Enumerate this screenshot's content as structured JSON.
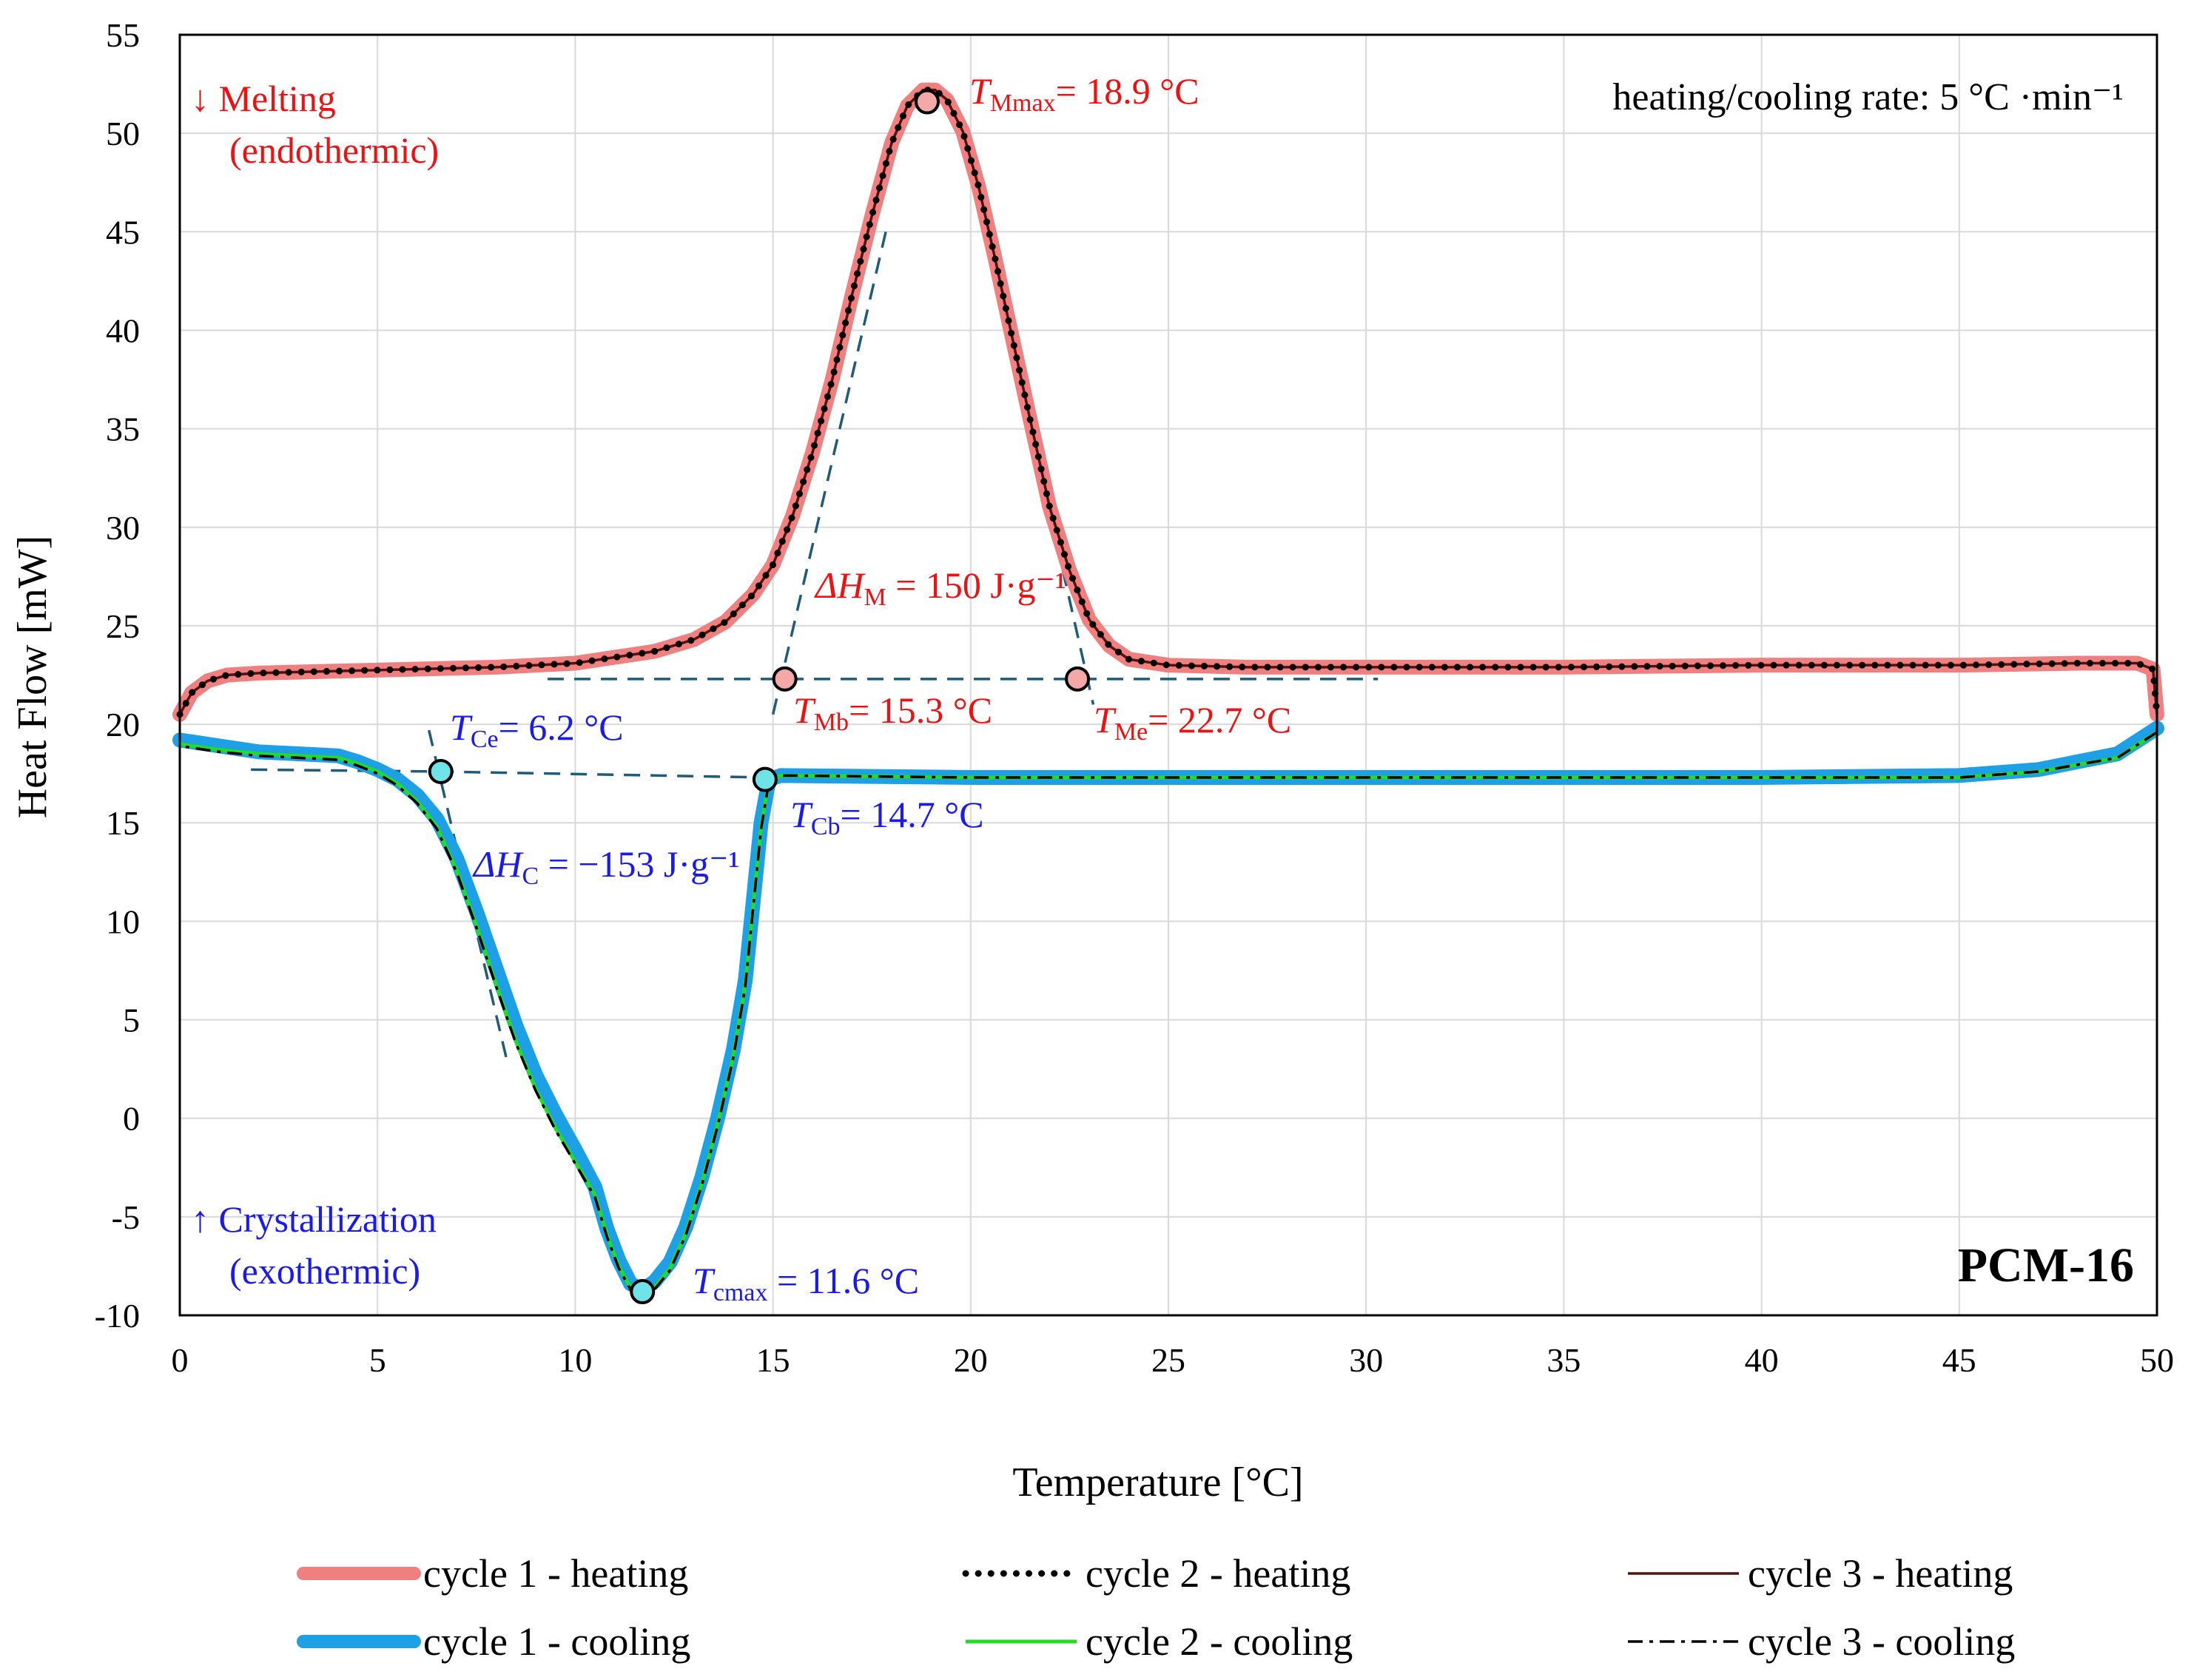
{
  "chart_data": {
    "type": "line",
    "title": "",
    "xlabel": "Temperature [°C]",
    "ylabel": "Heat Flow [mW]",
    "xlim": [
      0,
      50
    ],
    "ylim": [
      -10,
      55
    ],
    "x_ticks": [
      0,
      5,
      10,
      15,
      20,
      25,
      30,
      35,
      40,
      45,
      50
    ],
    "y_ticks": [
      -10,
      -5,
      0,
      5,
      10,
      15,
      20,
      25,
      30,
      35,
      40,
      45,
      50,
      55
    ],
    "grid": true,
    "legend_position": "bottom",
    "colors": {
      "heating": "#f08080",
      "cooling": "#1ea0e6",
      "cycle2_cooling": "#22dd22",
      "heating_label": "#ee1111",
      "cooling_label": "#1a1aee",
      "construction": "#1f5b7a"
    },
    "series": [
      {
        "name": "cycle 1 - heating",
        "style": "thick-red",
        "x": [
          0,
          0.3,
          0.7,
          1.2,
          2,
          4,
          6,
          8,
          10,
          11,
          12,
          13,
          13.8,
          14.5,
          15,
          15.5,
          16,
          16.5,
          17,
          17.5,
          18,
          18.4,
          18.8,
          19.1,
          19.4,
          19.8,
          20.2,
          20.6,
          21,
          21.5,
          22,
          22.5,
          23,
          23.5,
          24,
          25,
          27,
          30,
          35,
          40,
          45,
          48,
          49.5,
          49.9,
          50
        ],
        "y": [
          20.5,
          21.6,
          22.2,
          22.5,
          22.6,
          22.7,
          22.8,
          22.9,
          23.1,
          23.4,
          23.7,
          24.3,
          25.2,
          26.6,
          28.1,
          30.6,
          33.8,
          37.5,
          41.8,
          45.8,
          49.5,
          51.4,
          52.2,
          52.2,
          51.7,
          50.1,
          47.3,
          43.8,
          40.1,
          35.5,
          31.0,
          27.8,
          25.3,
          24.0,
          23.3,
          23.0,
          22.9,
          22.9,
          22.9,
          23.0,
          23.0,
          23.1,
          23.1,
          22.8,
          20.5
        ]
      },
      {
        "name": "cycle 2 - heating",
        "style": "dotted-black",
        "x": [
          0,
          0.3,
          0.7,
          1.2,
          2,
          4,
          6,
          8,
          10,
          11,
          12,
          13,
          13.8,
          14.5,
          15,
          15.5,
          16,
          16.5,
          17,
          17.5,
          18,
          18.4,
          18.8,
          19.1,
          19.4,
          19.8,
          20.2,
          20.6,
          21,
          21.5,
          22,
          22.5,
          23,
          23.5,
          24,
          25,
          27,
          30,
          35,
          40,
          45,
          48,
          49.5,
          49.9,
          50
        ],
        "y": [
          20.5,
          21.6,
          22.2,
          22.5,
          22.6,
          22.7,
          22.8,
          22.9,
          23.1,
          23.4,
          23.7,
          24.3,
          25.2,
          26.6,
          28.1,
          30.6,
          33.8,
          37.5,
          41.8,
          45.8,
          49.5,
          51.4,
          52.2,
          52.2,
          51.7,
          50.1,
          47.3,
          43.8,
          40.1,
          35.5,
          31.0,
          27.8,
          25.3,
          24.0,
          23.3,
          23.0,
          22.9,
          22.9,
          22.9,
          23.0,
          23.0,
          23.1,
          23.1,
          22.8,
          20.5
        ]
      },
      {
        "name": "cycle 3 - heating",
        "style": "thin-darkred",
        "x": [
          0,
          0.3,
          0.7,
          1.2,
          2,
          4,
          6,
          8,
          10,
          11,
          12,
          13,
          13.8,
          14.5,
          15,
          15.5,
          16,
          16.5,
          17,
          17.5,
          18,
          18.4,
          18.8,
          19.1,
          19.4,
          19.8,
          20.2,
          20.6,
          21,
          21.5,
          22,
          22.5,
          23,
          23.5,
          24,
          25,
          27,
          30,
          35,
          40,
          45,
          48,
          49.5,
          49.9,
          50
        ],
        "y": [
          20.5,
          21.6,
          22.2,
          22.5,
          22.6,
          22.7,
          22.8,
          22.9,
          23.1,
          23.4,
          23.7,
          24.3,
          25.2,
          26.6,
          28.1,
          30.6,
          33.8,
          37.5,
          41.8,
          45.8,
          49.5,
          51.4,
          52.2,
          52.2,
          51.7,
          50.1,
          47.3,
          43.8,
          40.1,
          35.5,
          31.0,
          27.8,
          25.3,
          24.0,
          23.3,
          23.0,
          22.9,
          22.9,
          22.9,
          23.0,
          23.0,
          23.1,
          23.1,
          22.8,
          20.5
        ]
      },
      {
        "name": "cycle 1 - cooling",
        "style": "thick-blue",
        "x": [
          50,
          49,
          47,
          45,
          40,
          30,
          20,
          15.2,
          14.9,
          14.7,
          14.5,
          14.3,
          14.0,
          13.6,
          13.2,
          12.8,
          12.4,
          12.0,
          11.7,
          11.4,
          11.1,
          10.8,
          10.5,
          10.0,
          9.5,
          9.0,
          8.5,
          8.0,
          7.5,
          7.0,
          6.5,
          6.0,
          5.5,
          5.0,
          4.5,
          4.0,
          3.0,
          2.0,
          1.0,
          0
        ],
        "y": [
          19.8,
          18.5,
          17.7,
          17.4,
          17.3,
          17.3,
          17.3,
          17.4,
          17.2,
          15.0,
          11.0,
          7.0,
          3.5,
          0.0,
          -3.0,
          -5.5,
          -7.3,
          -8.3,
          -8.7,
          -8.4,
          -7.2,
          -5.6,
          -3.5,
          -1.6,
          0.2,
          2.2,
          4.7,
          7.6,
          10.5,
          13.2,
          15.2,
          16.4,
          17.2,
          17.7,
          18.1,
          18.4,
          18.5,
          18.6,
          18.9,
          19.2
        ]
      },
      {
        "name": "cycle 2 - cooling",
        "style": "thin-green",
        "x": [
          50,
          49,
          47,
          45,
          40,
          30,
          20,
          15.2,
          14.9,
          14.7,
          14.5,
          14.3,
          14.0,
          13.6,
          13.2,
          12.8,
          12.4,
          12.0,
          11.7,
          11.4,
          11.1,
          10.8,
          10.5,
          10.0,
          9.5,
          9.0,
          8.5,
          8.0,
          7.5,
          7.0,
          6.5,
          6.0,
          5.5,
          5.0,
          4.5,
          4.0,
          3.0,
          2.0,
          1.0,
          0
        ],
        "y": [
          19.6,
          18.3,
          17.6,
          17.3,
          17.3,
          17.3,
          17.3,
          17.4,
          17.1,
          14.8,
          10.8,
          6.8,
          3.2,
          -0.3,
          -3.3,
          -5.8,
          -7.6,
          -8.6,
          -8.9,
          -8.6,
          -7.5,
          -5.9,
          -3.9,
          -2.2,
          -0.5,
          1.5,
          3.9,
          6.8,
          9.8,
          12.6,
          14.8,
          16.1,
          17.0,
          17.6,
          18.0,
          18.3,
          18.4,
          18.5,
          18.7,
          19.0
        ]
      },
      {
        "name": "cycle 3 - cooling",
        "style": "dashdot-black",
        "x": [
          50,
          49,
          47,
          45,
          40,
          30,
          20,
          15.2,
          14.9,
          14.7,
          14.5,
          14.3,
          14.0,
          13.6,
          13.2,
          12.8,
          12.4,
          12.0,
          11.7,
          11.4,
          11.1,
          10.8,
          10.5,
          10.0,
          9.5,
          9.0,
          8.5,
          8.0,
          7.5,
          7.0,
          6.5,
          6.0,
          5.5,
          5.0,
          4.5,
          4.0,
          3.0,
          2.0,
          1.0,
          0
        ],
        "y": [
          19.6,
          18.3,
          17.6,
          17.3,
          17.3,
          17.3,
          17.3,
          17.4,
          17.1,
          14.7,
          10.7,
          6.7,
          3.1,
          -0.4,
          -3.4,
          -5.9,
          -7.7,
          -8.7,
          -9.0,
          -8.7,
          -7.6,
          -6.0,
          -4.0,
          -2.3,
          -0.6,
          1.4,
          3.8,
          6.7,
          9.7,
          12.5,
          14.7,
          16.0,
          16.9,
          17.5,
          17.9,
          18.2,
          18.3,
          18.4,
          18.6,
          18.9
        ]
      }
    ],
    "construction_lines": [
      {
        "x": [
          9.3,
          30.3
        ],
        "y": [
          22.3,
          22.3
        ]
      },
      {
        "x": [
          1.8,
          6.6,
          14.8,
          15.3
        ],
        "y": [
          17.7,
          17.6,
          17.3,
          17.3
        ]
      },
      {
        "x": [
          15.0,
          17.9
        ],
        "y": [
          20.5,
          45.4
        ]
      },
      {
        "x": [
          20.1,
          23.1
        ],
        "y": [
          47.6,
          21.0
        ]
      },
      {
        "x": [
          6.3,
          8.3
        ],
        "y": [
          19.7,
          2.7
        ]
      }
    ],
    "markers": [
      {
        "x": 18.9,
        "y": 51.6,
        "color": "#f4a8a8"
      },
      {
        "x": 15.3,
        "y": 22.3,
        "color": "#f4a8a8"
      },
      {
        "x": 22.7,
        "y": 22.3,
        "color": "#f4a8a8"
      },
      {
        "x": 6.6,
        "y": 17.6,
        "color": "#6ee3e8"
      },
      {
        "x": 14.8,
        "y": 17.2,
        "color": "#6ee3e8"
      },
      {
        "x": 11.7,
        "y": -8.8,
        "color": "#6ee3e8"
      }
    ],
    "annotations": {
      "melting": "↓ Melting",
      "endothermic": "(endothermic)",
      "crystallization": "↑ Crystallization",
      "exothermic": "(exothermic)",
      "rate": "heating/cooling rate: 5 °C ·min⁻¹",
      "sample": "PCM-16",
      "t_mmax_sym": "T",
      "t_mmax_sub": "Mmax",
      "t_mmax_val": "= 18.9 °C",
      "t_mb_sym": "T",
      "t_mb_sub": "Mb",
      "t_mb_val": "= 15.3 °C",
      "t_me_sym": "T",
      "t_me_sub": "Me",
      "t_me_val": "= 22.7 °C",
      "dh_m_sym": "ΔH",
      "dh_m_sub": "M",
      "dh_m_val": " = 150 J·g⁻¹",
      "t_ce_sym": "T",
      "t_ce_sub": "Ce",
      "t_ce_val": "= 6.2 °C",
      "t_cb_sym": "T",
      "t_cb_sub": "Cb",
      "t_cb_val": "= 14.7 °C",
      "dh_c_sym": "ΔH",
      "dh_c_sub": "C",
      "dh_c_val": " = −153 J·g⁻¹",
      "t_cmax_sym": "T",
      "t_cmax_sub": "cmax",
      "t_cmax_val": " = 11.6 °C"
    }
  }
}
